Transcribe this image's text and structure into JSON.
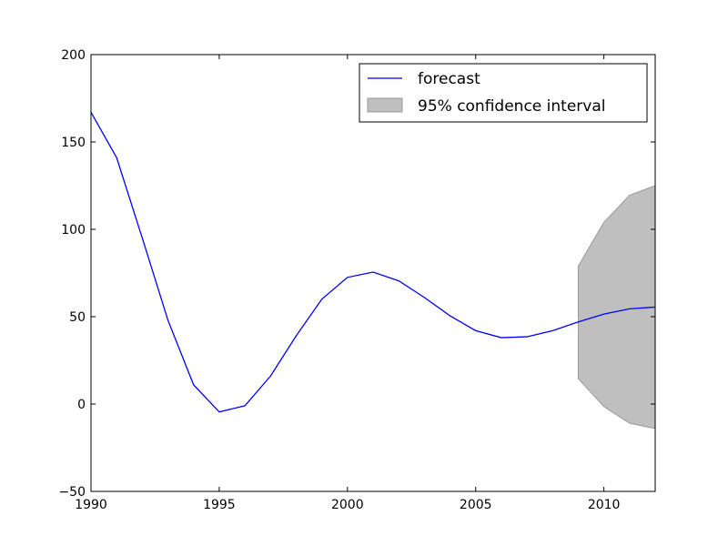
{
  "chart_data": {
    "type": "line",
    "title": "",
    "xlabel": "",
    "ylabel": "",
    "xlim": [
      1990,
      2012
    ],
    "ylim": [
      -50,
      200
    ],
    "grid": false,
    "legend_position": "top-right",
    "x_ticks": [
      1990,
      1995,
      2000,
      2005,
      2010
    ],
    "x_tick_labels": [
      "1990",
      "1995",
      "2000",
      "2005",
      "2010"
    ],
    "y_ticks": [
      -50,
      0,
      50,
      100,
      150,
      200
    ],
    "y_tick_labels": [
      "−50",
      "0",
      "50",
      "100",
      "150",
      "200"
    ],
    "series": [
      {
        "name": "forecast",
        "color": "#0000ff",
        "x": [
          1990,
          1991,
          1992,
          1993,
          1994,
          1995,
          1996,
          1997,
          1998,
          1999,
          2000,
          2001,
          2002,
          2003,
          2004,
          2005,
          2006,
          2007,
          2008,
          2009,
          2010,
          2011,
          2012
        ],
        "y": [
          167,
          141,
          95,
          48,
          11,
          -4.5,
          -1,
          16,
          39,
          60,
          72.5,
          75.5,
          70.5,
          61,
          50.5,
          42,
          38,
          38.5,
          42,
          47,
          51.5,
          54.5,
          55.5
        ]
      }
    ],
    "confidence_interval": {
      "name": "95% confidence interval",
      "color": "#bfbfbf",
      "x": [
        2009,
        2010,
        2011,
        2012
      ],
      "upper": [
        79,
        104,
        119.5,
        125
      ],
      "lower": [
        14.5,
        -1.5,
        -11,
        -14
      ]
    }
  }
}
